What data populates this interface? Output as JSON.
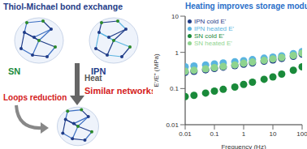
{
  "diagram": {
    "title": "Thiol-Michael bond exchange",
    "networks": [
      {
        "label": "SN"
      },
      {
        "label": "IPN"
      }
    ],
    "arrow": "Heat",
    "result": "Similar networks",
    "annotation": "Loops reduction"
  },
  "chart_data": {
    "type": "scatter",
    "title": "Heating improves storage modulus",
    "x_label": "Frequency (Hz)",
    "y_label": "E'/E\" (MPa)",
    "log": true,
    "legend": "upper left",
    "marker": "circle",
    "x": [
      0.01,
      0.02,
      0.05,
      0.1,
      0.2,
      0.5,
      1,
      2,
      5,
      10,
      20,
      50,
      100
    ],
    "xlim": [
      0.01,
      100
    ],
    "xticks": [
      0.01,
      0.1,
      1,
      10,
      100
    ],
    "ylim": [
      0.01,
      10
    ],
    "yticks": [
      0.01,
      0.1,
      1,
      10
    ],
    "series": [
      {
        "name": "IPN cold E'",
        "color": "#1f3c88",
        "values": [
          0.28,
          0.3,
          0.33,
          0.36,
          0.39,
          0.43,
          0.47,
          0.51,
          0.57,
          0.62,
          0.68,
          0.78,
          0.9
        ]
      },
      {
        "name": "IPN heated E'",
        "color": "#5ab4e0",
        "values": [
          0.4,
          0.42,
          0.45,
          0.48,
          0.51,
          0.55,
          0.59,
          0.63,
          0.69,
          0.74,
          0.8,
          0.92,
          1.05
        ]
      },
      {
        "name": "SN cold E'",
        "color": "#1a8a3a",
        "values": [
          0.06,
          0.065,
          0.075,
          0.085,
          0.095,
          0.11,
          0.13,
          0.15,
          0.18,
          0.21,
          0.25,
          0.32,
          0.4
        ]
      },
      {
        "name": "SN heated E'",
        "color": "#8fd48f",
        "values": [
          0.3,
          0.32,
          0.35,
          0.38,
          0.41,
          0.45,
          0.5,
          0.54,
          0.6,
          0.66,
          0.72,
          0.82,
          0.95
        ]
      }
    ]
  }
}
